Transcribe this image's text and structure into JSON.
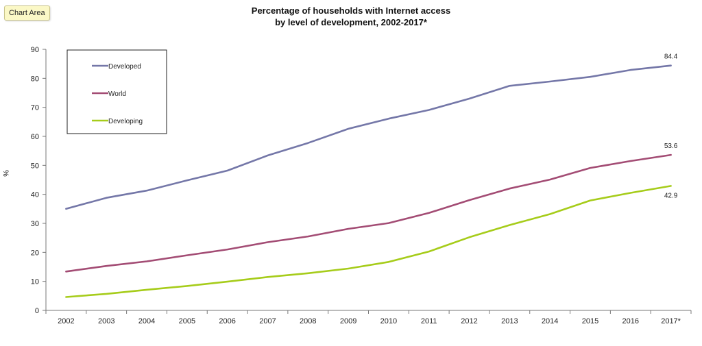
{
  "chart_area_label": "Chart Area",
  "chart_data": {
    "type": "line",
    "title_line1": "Percentage of households with Internet access",
    "title_line2": "by level of development, 2002-2017*",
    "xlabel": "",
    "ylabel": "%",
    "ylim": [
      0,
      90
    ],
    "yticks": [
      "0",
      "10",
      "20",
      "30",
      "40",
      "50",
      "60",
      "70",
      "80",
      "90"
    ],
    "categories": [
      "2002",
      "2003",
      "2004",
      "2005",
      "2006",
      "2007",
      "2008",
      "2009",
      "2010",
      "2011",
      "2012",
      "2013",
      "2014",
      "2015",
      "2016",
      "2017*"
    ],
    "legend_position": "top-left",
    "series": [
      {
        "name": "Developed",
        "color": "#7477a8",
        "values": [
          35.0,
          38.8,
          41.3,
          44.8,
          48.2,
          53.4,
          57.7,
          62.6,
          66.1,
          69.1,
          73.0,
          77.4,
          78.9,
          80.5,
          82.9,
          84.4
        ],
        "end_label": "84.4"
      },
      {
        "name": "World",
        "color": "#a34c74",
        "values": [
          13.4,
          15.3,
          16.9,
          19.0,
          21.0,
          23.5,
          25.5,
          28.1,
          30.1,
          33.6,
          38.0,
          42.0,
          45.1,
          49.1,
          51.5,
          53.6
        ],
        "end_label": "53.6"
      },
      {
        "name": "Developing",
        "color": "#a6cc1a",
        "values": [
          4.6,
          5.7,
          7.1,
          8.4,
          9.9,
          11.5,
          12.8,
          14.4,
          16.7,
          20.3,
          25.2,
          29.4,
          33.2,
          37.9,
          40.5,
          42.9
        ],
        "end_label": "42.9"
      }
    ]
  }
}
